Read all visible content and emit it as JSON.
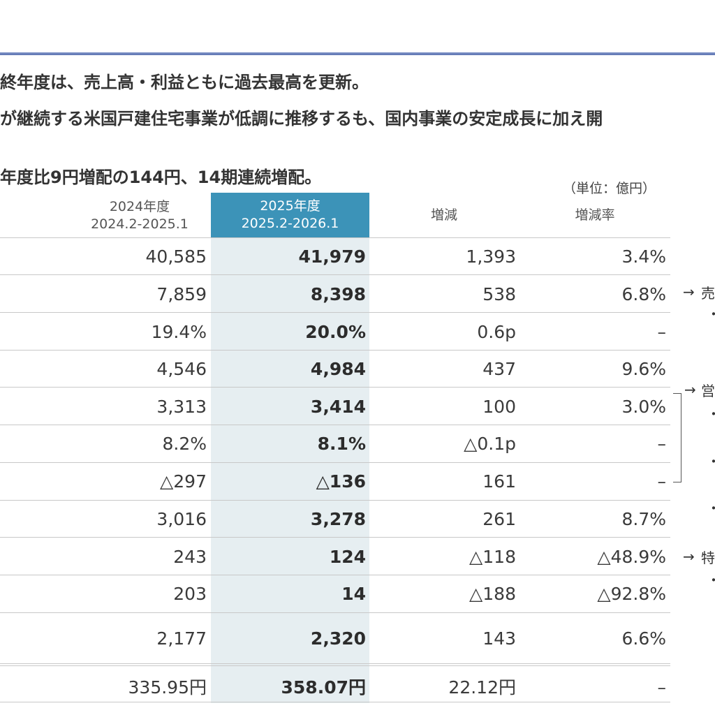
{
  "headlines": [
    "終年度は、売上高・利益ともに過去最高を更新。",
    "が継続する米国戸建住宅事業が低調に推移するも、国内事業の安定成長に加え開",
    "年度比9円増配の144円、14期連続増配。"
  ],
  "unit_note": "（単位：億円）",
  "columns": {
    "prev": {
      "line1": "2024年度",
      "line2": "2024.2-2025.1"
    },
    "curr": {
      "line1": "2025年度",
      "line2": "2025.2-2026.1"
    },
    "change": "増減",
    "rate": "増減率"
  },
  "rows": [
    {
      "prev": "40,585",
      "curr": "41,979",
      "change": "1,393",
      "rate": "3.4%"
    },
    {
      "prev": "7,859",
      "curr": "8,398",
      "change": "538",
      "rate": "6.8%"
    },
    {
      "prev": "19.4%",
      "curr": "20.0%",
      "change": "0.6p",
      "rate": "–"
    },
    {
      "prev": "4,546",
      "curr": "4,984",
      "change": "437",
      "rate": "9.6%"
    },
    {
      "prev": "3,313",
      "curr": "3,414",
      "change": "100",
      "rate": "3.0%"
    },
    {
      "prev": "8.2%",
      "curr": "8.1%",
      "change": "△0.1p",
      "rate": "–"
    },
    {
      "prev": "△297",
      "curr": "△136",
      "change": "161",
      "rate": "–"
    },
    {
      "prev": "3,016",
      "curr": "3,278",
      "change": "261",
      "rate": "8.7%"
    },
    {
      "prev": "243",
      "curr": "124",
      "change": "△118",
      "rate": "△48.9%"
    },
    {
      "prev": "203",
      "curr": "14",
      "change": "△188",
      "rate": "△92.8%"
    },
    {
      "prev": "2,177",
      "curr": "2,320",
      "change": "143",
      "rate": "6.6%"
    },
    {
      "prev": "335.95円",
      "curr": "358.07円",
      "change": "22.12円",
      "rate": "–"
    }
  ],
  "side_notes": {
    "note1": "売",
    "note2": "営",
    "note3": "特",
    "arrow": "→",
    "bullet": "・"
  }
}
